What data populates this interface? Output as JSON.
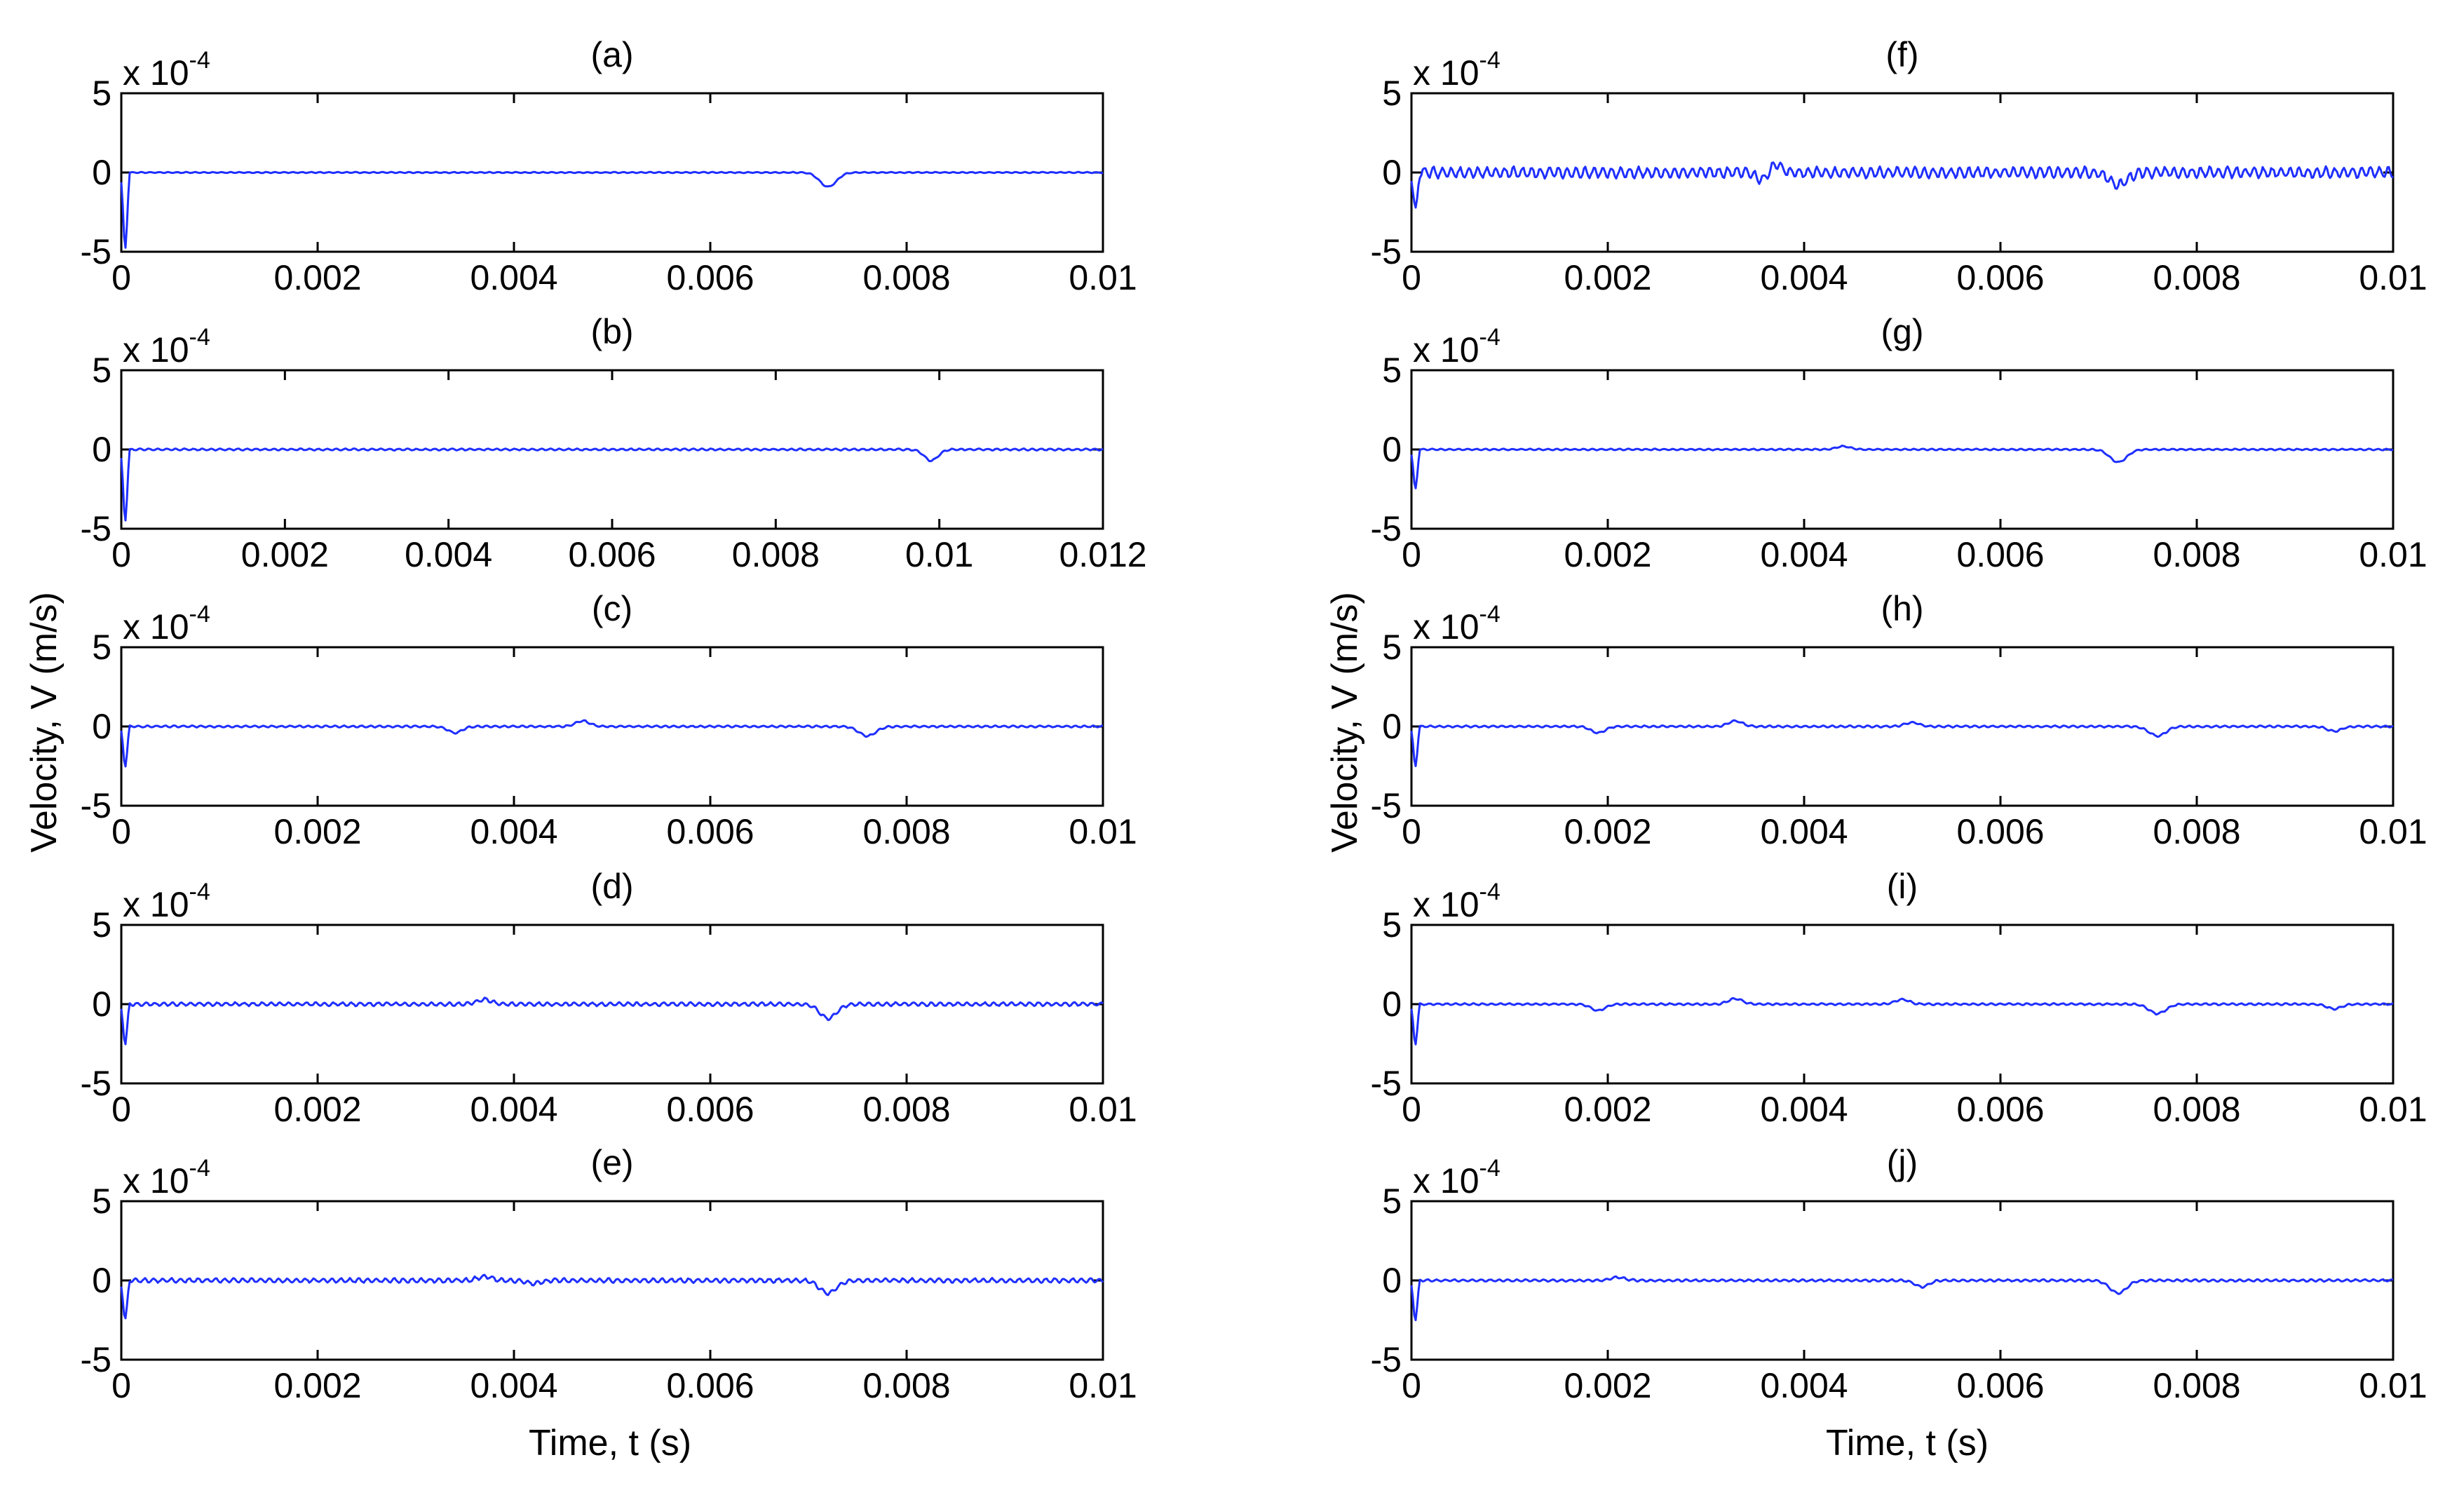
{
  "chart_data": {
    "type": "line",
    "ylabel": "Velocity, V (m/s)",
    "xlabel": "Time, t (s)",
    "line_color": "#1f2fff",
    "panels": [
      {
        "id": "a",
        "title": "(a)",
        "col": 0,
        "row": 0,
        "multiplier": "x 10",
        "exponent": "-4",
        "xlim": [
          0,
          0.01
        ],
        "ylim": [
          -5,
          5
        ],
        "xticks": [
          0,
          0.002,
          0.004,
          0.006,
          0.008,
          0.01
        ],
        "xtick_labels": [
          "0",
          "0.002",
          "0.004",
          "0.006",
          "0.008",
          "0.01"
        ],
        "yticks": [
          5,
          0,
          -5
        ],
        "ytick_labels": [
          "5",
          "0",
          "-5"
        ],
        "series": [
          {
            "name": "velocity",
            "initial_dip": -4.8,
            "noise": 0.03,
            "events": [
              {
                "t": 0.0072,
                "amp": -0.9,
                "width": 0.00012
              }
            ]
          }
        ]
      },
      {
        "id": "b",
        "title": "(b)",
        "col": 0,
        "row": 1,
        "multiplier": "x 10",
        "exponent": "-4",
        "xlim": [
          0,
          0.012
        ],
        "ylim": [
          -5,
          5
        ],
        "xticks": [
          0,
          0.002,
          0.004,
          0.006,
          0.008,
          0.01,
          0.012
        ],
        "xtick_labels": [
          "0",
          "0.002",
          "0.004",
          "0.006",
          "0.008",
          "0.01",
          "0.012"
        ],
        "yticks": [
          5,
          0,
          -5
        ],
        "ytick_labels": [
          "5",
          "0",
          "-5"
        ],
        "series": [
          {
            "name": "velocity",
            "initial_dip": -4.5,
            "noise": 0.05,
            "events": [
              {
                "t": 0.0099,
                "amp": -0.7,
                "width": 0.00012
              }
            ]
          }
        ]
      },
      {
        "id": "c",
        "title": "(c)",
        "col": 0,
        "row": 2,
        "multiplier": "x 10",
        "exponent": "-4",
        "xlim": [
          0,
          0.01
        ],
        "ylim": [
          -5,
          5
        ],
        "xticks": [
          0,
          0.002,
          0.004,
          0.006,
          0.008,
          0.01
        ],
        "xtick_labels": [
          "0",
          "0.002",
          "0.004",
          "0.006",
          "0.008",
          "0.01"
        ],
        "yticks": [
          5,
          0,
          -5
        ],
        "ytick_labels": [
          "5",
          "0",
          "-5"
        ],
        "series": [
          {
            "name": "velocity",
            "initial_dip": -2.5,
            "noise": 0.05,
            "events": [
              {
                "t": 0.0034,
                "amp": -0.4,
                "width": 0.0001
              },
              {
                "t": 0.0047,
                "amp": 0.35,
                "width": 0.0001
              },
              {
                "t": 0.0076,
                "amp": -0.6,
                "width": 0.00012
              }
            ]
          }
        ]
      },
      {
        "id": "d",
        "title": "(d)",
        "col": 0,
        "row": 3,
        "multiplier": "x 10",
        "exponent": "-4",
        "xlim": [
          0,
          0.01
        ],
        "ylim": [
          -5,
          5
        ],
        "xticks": [
          0,
          0.002,
          0.004,
          0.006,
          0.008,
          0.01
        ],
        "xtick_labels": [
          "0",
          "0.002",
          "0.004",
          "0.006",
          "0.008",
          "0.01"
        ],
        "yticks": [
          5,
          0,
          -5
        ],
        "ytick_labels": [
          "5",
          "0",
          "-5"
        ],
        "series": [
          {
            "name": "velocity",
            "initial_dip": -2.5,
            "noise": 0.1,
            "events": [
              {
                "t": 0.0037,
                "amp": 0.3,
                "width": 0.0001
              },
              {
                "t": 0.0072,
                "amp": -0.9,
                "width": 0.00012
              }
            ]
          }
        ]
      },
      {
        "id": "e",
        "title": "(e)",
        "col": 0,
        "row": 4,
        "multiplier": "x 10",
        "exponent": "-4",
        "xlim": [
          0,
          0.01
        ],
        "ylim": [
          -5,
          5
        ],
        "xticks": [
          0,
          0.002,
          0.004,
          0.006,
          0.008,
          0.01
        ],
        "xtick_labels": [
          "0",
          "0.002",
          "0.004",
          "0.006",
          "0.008",
          "0.01"
        ],
        "yticks": [
          5,
          0,
          -5
        ],
        "ytick_labels": [
          "5",
          "0",
          "-5"
        ],
        "series": [
          {
            "name": "velocity",
            "initial_dip": -2.5,
            "noise": 0.12,
            "events": [
              {
                "t": 0.0037,
                "amp": 0.25,
                "width": 0.0001
              },
              {
                "t": 0.0042,
                "amp": -0.2,
                "width": 0.0001
              },
              {
                "t": 0.0072,
                "amp": -0.8,
                "width": 0.00012
              }
            ]
          }
        ]
      },
      {
        "id": "f",
        "title": "(f)",
        "col": 1,
        "row": 0,
        "multiplier": "x 10",
        "exponent": "-4",
        "xlim": [
          0,
          0.01
        ],
        "ylim": [
          -5,
          5
        ],
        "xticks": [
          0,
          0.002,
          0.004,
          0.006,
          0.008,
          0.01
        ],
        "xtick_labels": [
          "0",
          "0.002",
          "0.004",
          "0.006",
          "0.008",
          "0.01"
        ],
        "yticks": [
          5,
          0,
          -5
        ],
        "ytick_labels": [
          "5",
          "0",
          "-5"
        ],
        "series": [
          {
            "name": "velocity",
            "initial_dip": -2.5,
            "noise": 0.3,
            "events": [
              {
                "t": 0.0036,
                "amp": -0.5,
                "width": 0.0001
              },
              {
                "t": 0.0037,
                "amp": 0.7,
                "width": 8e-05
              },
              {
                "t": 0.0072,
                "amp": -0.8,
                "width": 0.00012
              }
            ]
          }
        ]
      },
      {
        "id": "g",
        "title": "(g)",
        "col": 1,
        "row": 1,
        "multiplier": "x 10",
        "exponent": "-4",
        "xlim": [
          0,
          0.01
        ],
        "ylim": [
          -5,
          5
        ],
        "xticks": [
          0,
          0.002,
          0.004,
          0.006,
          0.008,
          0.01
        ],
        "xtick_labels": [
          "0",
          "0.002",
          "0.004",
          "0.006",
          "0.008",
          "0.01"
        ],
        "yticks": [
          5,
          0,
          -5
        ],
        "ytick_labels": [
          "5",
          "0",
          "-5"
        ],
        "series": [
          {
            "name": "velocity",
            "initial_dip": -2.5,
            "noise": 0.04,
            "events": [
              {
                "t": 0.0044,
                "amp": 0.2,
                "width": 0.0001
              },
              {
                "t": 0.0072,
                "amp": -0.8,
                "width": 0.00012
              }
            ]
          }
        ]
      },
      {
        "id": "h",
        "title": "(h)",
        "col": 1,
        "row": 2,
        "multiplier": "x 10",
        "exponent": "-4",
        "xlim": [
          0,
          0.01
        ],
        "ylim": [
          -5,
          5
        ],
        "xticks": [
          0,
          0.002,
          0.004,
          0.006,
          0.008,
          0.01
        ],
        "xtick_labels": [
          "0",
          "0.002",
          "0.004",
          "0.006",
          "0.008",
          "0.01"
        ],
        "yticks": [
          5,
          0,
          -5
        ],
        "ytick_labels": [
          "5",
          "0",
          "-5"
        ],
        "series": [
          {
            "name": "velocity",
            "initial_dip": -2.5,
            "noise": 0.05,
            "events": [
              {
                "t": 0.0019,
                "amp": -0.4,
                "width": 0.0001
              },
              {
                "t": 0.0033,
                "amp": 0.35,
                "width": 0.0001
              },
              {
                "t": 0.0051,
                "amp": 0.25,
                "width": 0.0001
              },
              {
                "t": 0.0076,
                "amp": -0.6,
                "width": 0.00012
              },
              {
                "t": 0.0094,
                "amp": -0.3,
                "width": 0.0001
              }
            ]
          }
        ]
      },
      {
        "id": "i",
        "title": "(i)",
        "col": 1,
        "row": 3,
        "multiplier": "x 10",
        "exponent": "-4",
        "xlim": [
          0,
          0.01
        ],
        "ylim": [
          -5,
          5
        ],
        "xticks": [
          0,
          0.002,
          0.004,
          0.006,
          0.008,
          0.01
        ],
        "xtick_labels": [
          "0",
          "0.002",
          "0.004",
          "0.006",
          "0.008",
          "0.01"
        ],
        "yticks": [
          5,
          0,
          -5
        ],
        "ytick_labels": [
          "5",
          "0",
          "-5"
        ],
        "series": [
          {
            "name": "velocity",
            "initial_dip": -2.5,
            "noise": 0.05,
            "events": [
              {
                "t": 0.0019,
                "amp": -0.4,
                "width": 0.0001
              },
              {
                "t": 0.0033,
                "amp": 0.35,
                "width": 0.0001
              },
              {
                "t": 0.005,
                "amp": 0.3,
                "width": 0.0001
              },
              {
                "t": 0.0076,
                "amp": -0.6,
                "width": 0.00012
              },
              {
                "t": 0.0094,
                "amp": -0.3,
                "width": 0.0001
              }
            ]
          }
        ]
      },
      {
        "id": "j",
        "title": "(j)",
        "col": 1,
        "row": 4,
        "multiplier": "x 10",
        "exponent": "-4",
        "xlim": [
          0,
          0.01
        ],
        "ylim": [
          -5,
          5
        ],
        "xticks": [
          0,
          0.002,
          0.004,
          0.006,
          0.008,
          0.01
        ],
        "xtick_labels": [
          "0",
          "0.002",
          "0.004",
          "0.006",
          "0.008",
          "0.01"
        ],
        "yticks": [
          5,
          0,
          -5
        ],
        "ytick_labels": [
          "5",
          "0",
          "-5"
        ],
        "series": [
          {
            "name": "velocity",
            "initial_dip": -2.5,
            "noise": 0.06,
            "events": [
              {
                "t": 0.0021,
                "amp": 0.2,
                "width": 0.0001
              },
              {
                "t": 0.0052,
                "amp": -0.4,
                "width": 0.0001
              },
              {
                "t": 0.0072,
                "amp": -0.8,
                "width": 0.00012
              }
            ]
          }
        ]
      }
    ]
  }
}
